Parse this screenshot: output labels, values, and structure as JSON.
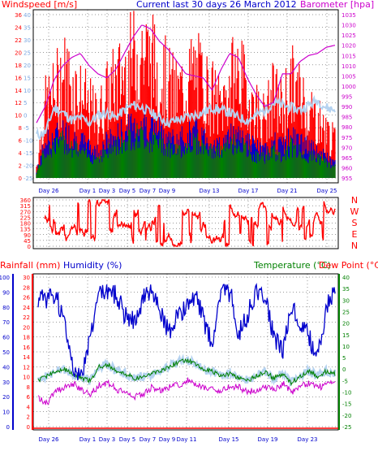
{
  "header": {
    "left_title": "Windspeed [m/s]",
    "center_title": "Current last 30 days 26 March 2012",
    "right_title": "Barometer [hpa]"
  },
  "colors": {
    "red": "#ff0000",
    "blue": "#0000cc",
    "magenta": "#cc00cc",
    "lightblue": "#b4d2f0",
    "green": "#008000",
    "axis_blue": "#0000ff",
    "grid": "#000000"
  },
  "chart_data": [
    {
      "type": "area",
      "title": "Current last 30 days 26 March 2012",
      "ylabel_left": "Windspeed [m/s]",
      "ylabel_right": "Barometer [hpa]",
      "ticks_left_red": [
        "36",
        "24",
        "22",
        "20",
        "18",
        "16",
        "14",
        "12",
        "10",
        "8",
        "6",
        "4",
        "2",
        "0"
      ],
      "ticks_left_blue": [
        "40",
        "35",
        "30",
        "25",
        "20",
        "15",
        "10",
        "5",
        "0",
        "-5",
        "-10",
        "-15",
        "-20",
        "-25"
      ],
      "ticks_right": [
        "1035",
        "1030",
        "1025",
        "1020",
        "1015",
        "1010",
        "1005",
        "1000",
        "995",
        "990",
        "985",
        "980",
        "975",
        "970",
        "965",
        "960",
        "955"
      ],
      "ylim_right": [
        955,
        1035
      ],
      "x_tick_labels": [
        "Day 26",
        "Day 1",
        "Day 3",
        "Day 5",
        "Day 7",
        "Day 9",
        "Day 13",
        "Day 17",
        "Day 21",
        "Day 25"
      ],
      "series": [
        {
          "name": "Barometer",
          "values": [
            982,
            990,
            1003,
            1010,
            1014,
            1016,
            1010,
            1006,
            1004,
            1008,
            1016,
            1024,
            1030,
            1028,
            1022,
            1018,
            1012,
            1006,
            1005,
            1004,
            998,
            1008,
            1016,
            1014,
            1004,
            996,
            990,
            992,
            1006,
            1006,
            1012,
            1015,
            1016,
            1019,
            1020
          ]
        },
        {
          "name": "Windspeed",
          "values": [
            2,
            12,
            14,
            18,
            16,
            14,
            12,
            10,
            14,
            16,
            18,
            20,
            22,
            20,
            18,
            16,
            14,
            16,
            18,
            16,
            14,
            12,
            16,
            18,
            14,
            12,
            10,
            14,
            12,
            16,
            14,
            12,
            10,
            8,
            6
          ]
        },
        {
          "name": "Windgust",
          "values": [
            1,
            7,
            8,
            9,
            8,
            7,
            6,
            5,
            7,
            8,
            9,
            10,
            11,
            10,
            9,
            8,
            7,
            8,
            9,
            8,
            7,
            6,
            8,
            9,
            7,
            6,
            5,
            7,
            6,
            8,
            7,
            6,
            5,
            4,
            3
          ]
        },
        {
          "name": "Windaverage",
          "values": [
            1,
            5,
            6,
            7,
            6,
            5,
            4,
            4,
            5,
            6,
            7,
            8,
            8,
            7,
            7,
            6,
            5,
            6,
            7,
            6,
            5,
            5,
            6,
            7,
            5,
            4,
            4,
            5,
            4,
            6,
            5,
            4,
            4,
            3,
            2
          ]
        },
        {
          "name": "Temperature",
          "values": [
            -8,
            -7,
            3,
            1,
            -2,
            -1,
            -3,
            0,
            1,
            -1,
            2,
            4,
            3,
            1,
            -1,
            -3,
            -2,
            -1,
            0,
            1,
            3,
            2,
            1,
            -1,
            -2,
            0,
            2,
            5,
            4,
            3,
            2,
            4,
            6,
            3,
            2
          ]
        }
      ]
    },
    {
      "type": "line",
      "ylabel_right": [
        "N",
        "W",
        "S",
        "E",
        "N"
      ],
      "ticks_left": [
        "360",
        "315",
        "270",
        "225",
        "180",
        "135",
        "90",
        "45",
        "0"
      ],
      "ylim": [
        0,
        360
      ]
    },
    {
      "type": "line",
      "ylabel_left_red": "Rainfall (mm)",
      "ylabel_left_blue": "Humidity (%)",
      "ylabel_right_green": "Temperature (°C)",
      "ylabel_right_red": "Dew Point (°C)",
      "ticks_left_blue": [
        "100",
        "90",
        "80",
        "70",
        "60",
        "50",
        "40",
        "30",
        "20",
        "10",
        "0"
      ],
      "ticks_left_red": [
        "30",
        "28",
        "26",
        "24",
        "22",
        "20",
        "18",
        "16",
        "14",
        "12",
        "10",
        "8",
        "6",
        "4",
        "2",
        "0"
      ],
      "ticks_right": [
        "40",
        "35",
        "30",
        "25",
        "20",
        "15",
        "10",
        "5",
        "0",
        "-5",
        "-10",
        "-15",
        "-20",
        "-25"
      ],
      "ylim_humidity": [
        0,
        100
      ],
      "ylim_temp": [
        -25,
        40
      ],
      "x_tick_labels": [
        "Day 26",
        "Day 1",
        "Day 3",
        "Day 5",
        "Day 7",
        "Day 9",
        "Day 11",
        "Day 15",
        "Day 19",
        "Day 23"
      ],
      "series": [
        {
          "name": "Humidity",
          "values": [
            85,
            86,
            88,
            70,
            40,
            35,
            60,
            90,
            92,
            88,
            74,
            70,
            86,
            92,
            78,
            62,
            74,
            80,
            88,
            70,
            55,
            92,
            90,
            62,
            75,
            92,
            88,
            60,
            50,
            82,
            70,
            60,
            45,
            80,
            92
          ]
        },
        {
          "name": "Temperature",
          "values": [
            -5,
            -3,
            -1,
            0,
            -2,
            -4,
            -5,
            1,
            2,
            -1,
            -2,
            -4,
            -3,
            -2,
            -1,
            1,
            3,
            4,
            2,
            0,
            -1,
            -3,
            -2,
            -4,
            -5,
            -3,
            -1,
            -4,
            -2,
            -6,
            -3,
            -1,
            -3,
            -1,
            -2
          ]
        },
        {
          "name": "Dew Point",
          "values": [
            -12,
            -15,
            -10,
            -8,
            -6,
            -9,
            -11,
            -7,
            -6,
            -9,
            -10,
            -12,
            -11,
            -8,
            -9,
            -8,
            -7,
            -5,
            -6,
            -8,
            -9,
            -10,
            -7,
            -8,
            -10,
            -9,
            -8,
            -9,
            -6,
            -10,
            -7,
            -6,
            -8,
            -7,
            -6
          ]
        }
      ]
    }
  ]
}
